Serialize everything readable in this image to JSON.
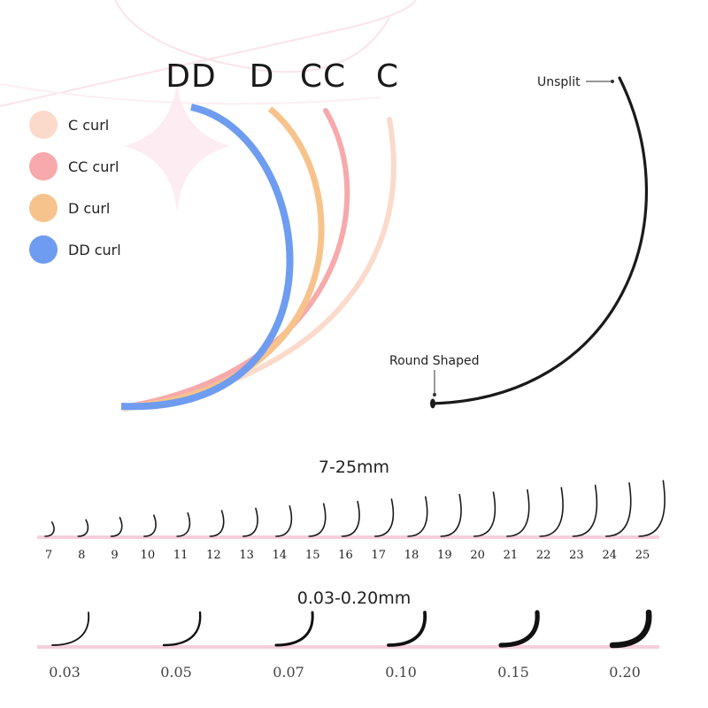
{
  "curl_letters": [
    "DD",
    "D",
    "CC",
    "C"
  ],
  "legend": [
    {
      "label": "C curl",
      "color": "#fbdacb"
    },
    {
      "label": "CC curl",
      "color": "#f7a9ab"
    },
    {
      "label": "D curl",
      "color": "#f7c38c"
    },
    {
      "label": "DD curl",
      "color": "#6e9cf0"
    }
  ],
  "annotations": {
    "unsplit": "Unsplit",
    "round_shaped": "Round Shaped"
  },
  "length_section": {
    "title": "7-25mm",
    "lengths": [
      "7",
      "8",
      "9",
      "10",
      "11",
      "12",
      "13",
      "14",
      "15",
      "16",
      "17",
      "18",
      "19",
      "20",
      "21",
      "22",
      "23",
      "24",
      "25"
    ]
  },
  "thickness_section": {
    "title": "0.03-0.20mm",
    "thicknesses": [
      "0.03",
      "0.05",
      "0.07",
      "0.10",
      "0.15",
      "0.20"
    ]
  }
}
